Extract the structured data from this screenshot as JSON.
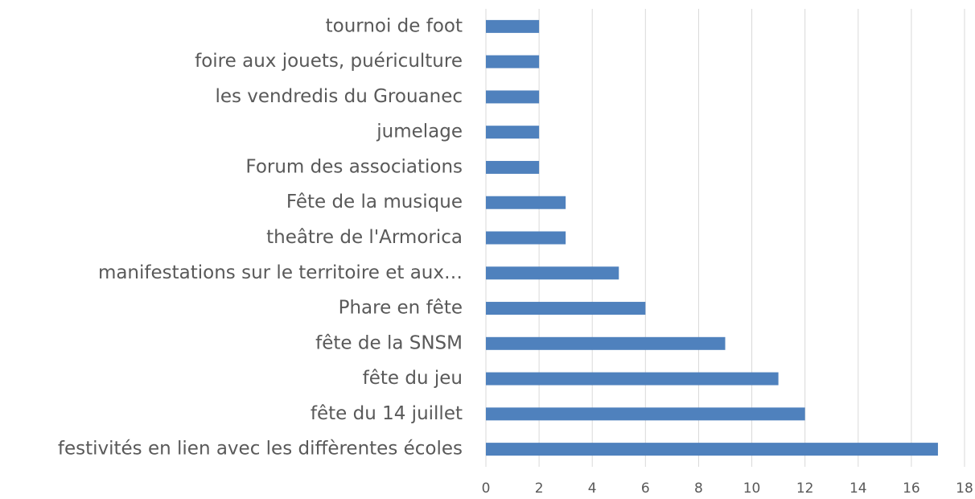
{
  "chart_data": {
    "type": "bar",
    "orientation": "horizontal",
    "categories": [
      "tournoi de foot",
      "foire aux jouets, puériculture",
      "les vendredis du Grouanec",
      "jumelage",
      "Forum des associations",
      "Fête de la musique",
      "theâtre de l'Armorica",
      "manifestations sur le territoire et aux…",
      "Phare en fête",
      "fête de la SNSM",
      "fête du jeu",
      "fête du 14 juillet",
      "festivités en lien avec les diffèrentes écoles"
    ],
    "values": [
      2,
      2,
      2,
      2,
      2,
      3,
      3,
      5,
      6,
      9,
      11,
      12,
      17
    ],
    "color": "#4f81bd",
    "xlim": [
      0,
      18
    ],
    "xticks": [
      0,
      2,
      4,
      6,
      8,
      10,
      12,
      14,
      16,
      18
    ],
    "grid": true
  }
}
